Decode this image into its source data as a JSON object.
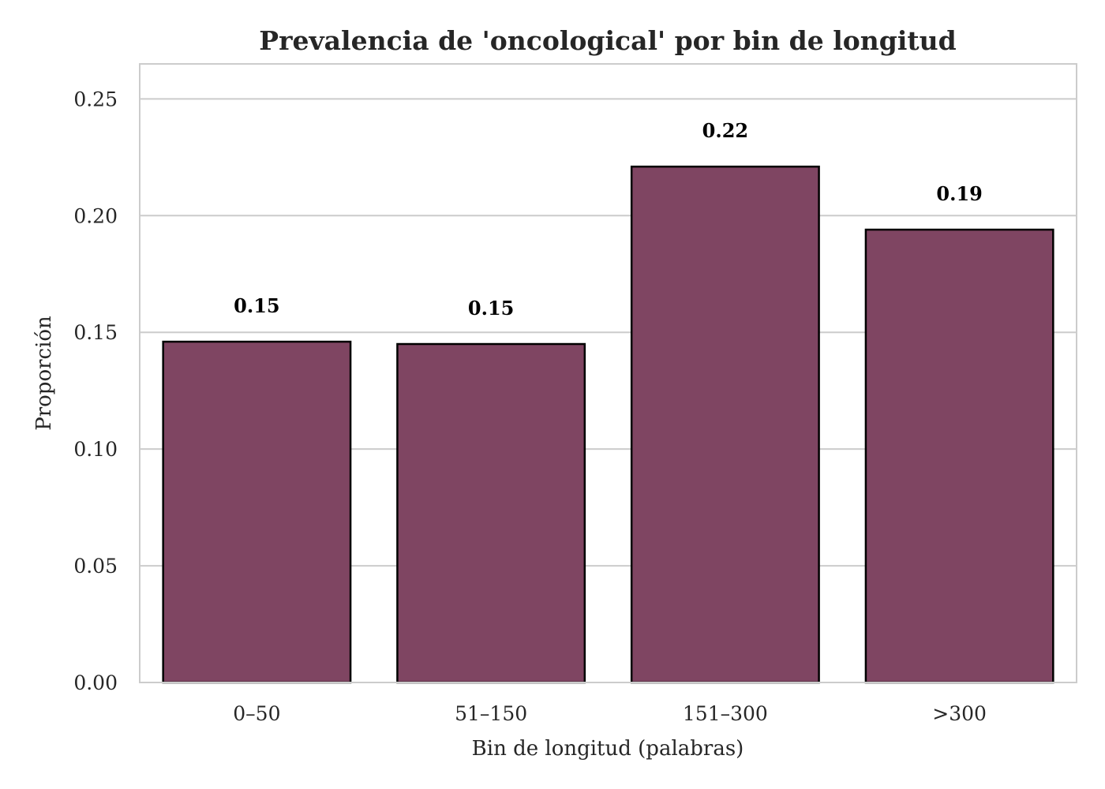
{
  "chart_data": {
    "type": "bar",
    "title": "Prevalencia de 'oncological' por bin de longitud",
    "xlabel": "Bin de longitud (palabras)",
    "ylabel": "Proporción",
    "categories": [
      "0–50",
      "51–150",
      "151–300",
      ">300"
    ],
    "values": [
      0.146,
      0.145,
      0.221,
      0.194
    ],
    "data_labels": [
      "0.15",
      "0.15",
      "0.22",
      "0.19"
    ],
    "ylim": [
      0,
      0.265
    ],
    "yticks": [
      0.0,
      0.05,
      0.1,
      0.15,
      0.2,
      0.25
    ],
    "ytick_labels": [
      "0.00",
      "0.05",
      "0.10",
      "0.15",
      "0.20",
      "0.25"
    ],
    "grid": true,
    "grid_axis": "y",
    "legend": "none",
    "colors": {
      "bar": "#7F4562",
      "bar_edge": "#000000",
      "grid": "#cccccc",
      "spine": "#cccccc",
      "text": "#262626"
    }
  }
}
